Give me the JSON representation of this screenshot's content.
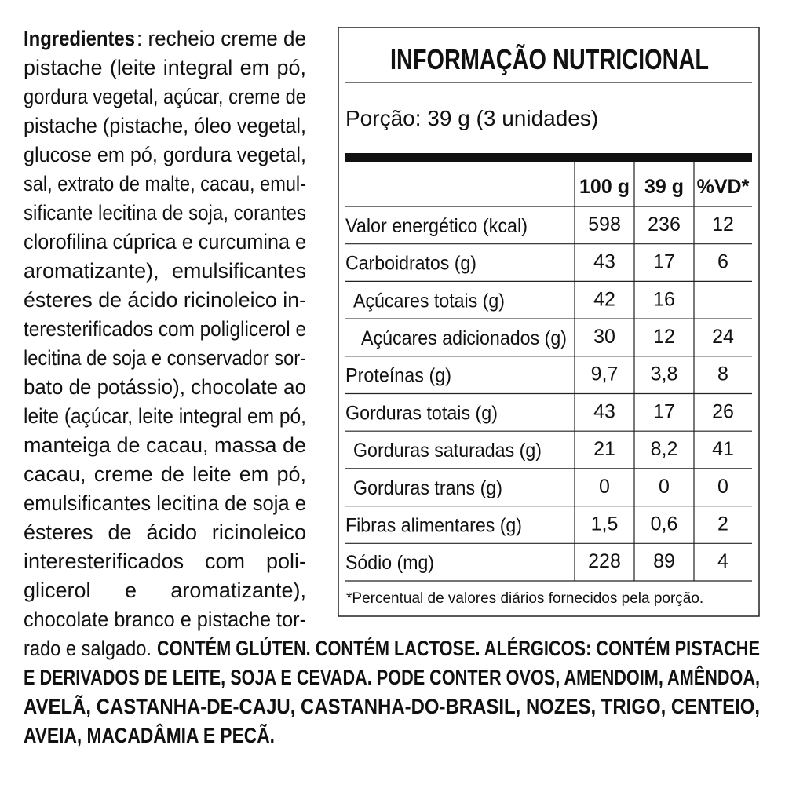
{
  "ingredients": {
    "label": "Ingredientes",
    "lines": [
      ": recheio creme de",
      "pistache (leite integral em pó,",
      "gordura vegetal, açúcar, creme de",
      "pistache (pistache, óleo vegetal,",
      "glucose em pó, gordura vegetal,",
      "sal, extrato de malte, cacau, emul-",
      "sificante lecitina de soja, corantes",
      "clorofilina cúprica e curcumina e",
      "aromatizante), emulsificantes",
      "ésteres de ácido ricinoleico in-",
      "teresterificados com poliglicerol e",
      "lecitina de soja e conservador sor-",
      "bato de potássio), chocolate ao",
      "leite (açúcar, leite integral em pó,",
      "manteiga de cacau, massa de",
      "cacau, creme de leite em pó,",
      "emulsificantes lecitina de soja e",
      "ésteres de ácido ricinoleico",
      "interesterificados com poli-",
      "glicerol e aromatizante),",
      "chocolate branco e pistache tor-",
      "rado e salgado."
    ]
  },
  "allergens": {
    "lines": [
      "CONTÉM GLÚTEN. CONTÉM LACTOSE. ALÉRGICOS: CONTÉM PISTACHE",
      "E DERIVADOS DE LEITE, SOJA E CEVADA. PODE CONTER OVOS, AMENDOIM, AMÊNDOA,",
      "AVELÃ, CASTANHA-DE-CAJU, CASTANHA-DO-BRASIL, NOZES, TRIGO, CENTEIO,",
      "AVEIA, MACADÂMIA E PECÃ."
    ]
  },
  "nutrition": {
    "title": "INFORMAÇÃO NUTRICIONAL",
    "portion": "Porção: 39 g (3 unidades)",
    "columns": [
      "100 g",
      "39 g",
      "%VD*"
    ],
    "rows": [
      {
        "label": "Valor energético (kcal)",
        "values": [
          "598",
          "236",
          "12"
        ]
      },
      {
        "label": "Carboidratos (g)",
        "values": [
          "43",
          "17",
          "6"
        ]
      },
      {
        "label": "Açúcares totais (g)",
        "values": [
          "42",
          "16"
        ]
      },
      {
        "label": "Açúcares adicionados (g)",
        "values": [
          "30",
          "12",
          "24"
        ]
      },
      {
        "label": "Proteínas (g)",
        "values": [
          "9,7",
          "3,8",
          "8"
        ]
      },
      {
        "label": "Gorduras totais (g)",
        "values": [
          "43",
          "17",
          "26"
        ]
      },
      {
        "label": "Gorduras saturadas (g)",
        "values": [
          "21",
          "8,2",
          "41"
        ]
      },
      {
        "label": "Gorduras trans (g)",
        "values": [
          "0",
          "0",
          "0"
        ]
      },
      {
        "label": "Fibras alimentares (g)",
        "values": [
          "1,5",
          "0,6",
          "2"
        ]
      },
      {
        "label": "Sódio (mg)",
        "values": [
          "228",
          "89",
          "4"
        ]
      }
    ],
    "footnote": "*Percentual de valores diários fornecidos pela porção."
  }
}
